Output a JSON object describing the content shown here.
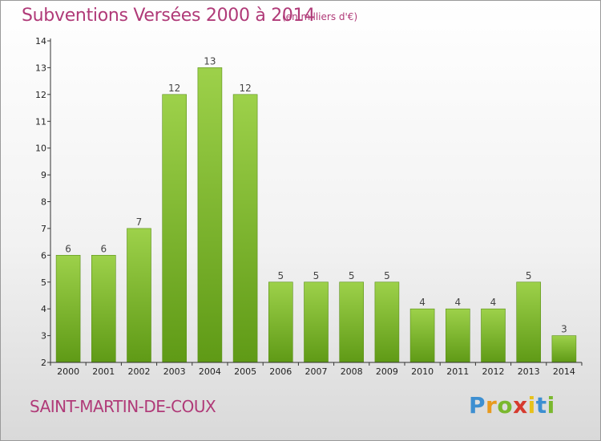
{
  "header": {
    "title": "Subventions Versées 2000 à 2014",
    "subtitle": "(en milliers d'€)"
  },
  "footer": {
    "place": "SAINT-MARTIN-DE-COUX",
    "logo": "Proxiti"
  },
  "colors": {
    "title": "#b03a78",
    "bar_light": "#9dd14a",
    "bar_dark": "#5f9a16",
    "axis": "#333333"
  },
  "chart_data": {
    "type": "bar",
    "categories": [
      "2000",
      "2001",
      "2002",
      "2003",
      "2004",
      "2005",
      "2006",
      "2007",
      "2008",
      "2009",
      "2010",
      "2011",
      "2012",
      "2013",
      "2014"
    ],
    "values": [
      6,
      6,
      7,
      12,
      13,
      12,
      5,
      5,
      5,
      5,
      4,
      4,
      4,
      5,
      3
    ],
    "ylim": [
      2,
      14
    ],
    "yticks": [
      2,
      3,
      4,
      5,
      6,
      7,
      8,
      9,
      10,
      11,
      12,
      13,
      14
    ],
    "grid": false,
    "legend": "none",
    "data_labels": true
  }
}
